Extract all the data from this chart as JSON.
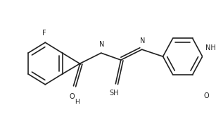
{
  "bg_color": "#ffffff",
  "line_color": "#222222",
  "line_width": 1.2,
  "font_size": 7.0,
  "figsize": [
    3.07,
    1.9
  ],
  "dpi": 100,
  "xlim": [
    0,
    307
  ],
  "ylim": [
    0,
    190
  ]
}
